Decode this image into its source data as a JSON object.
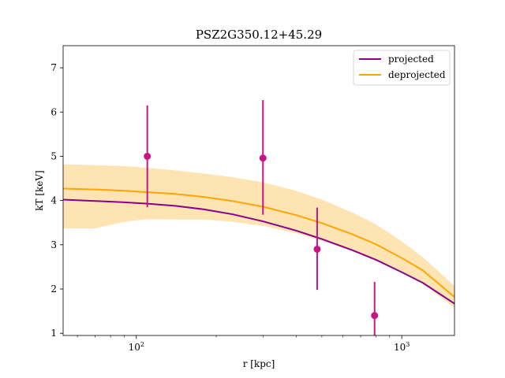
{
  "chart_data": {
    "type": "line",
    "title": "PSZ2G350.12+45.29",
    "xlabel": "r [kpc]",
    "ylabel": "kT [keV]",
    "xscale": "log",
    "xlim": [
      53,
      1580
    ],
    "ylim": [
      0.95,
      7.5
    ],
    "grid": false,
    "legend_position": "top-right",
    "yticks": [
      1,
      2,
      3,
      4,
      5,
      6,
      7
    ],
    "xticks": [
      {
        "value": 100,
        "label": "10^2"
      },
      {
        "value": 1000,
        "label": "10^3"
      }
    ],
    "series": [
      {
        "name": "projected",
        "kind": "line",
        "color": "#8B008B",
        "x": [
          53,
          70,
          90,
          110,
          140,
          180,
          230,
          300,
          400,
          500,
          650,
          800,
          1000,
          1200,
          1580
        ],
        "y": [
          4.02,
          3.99,
          3.96,
          3.93,
          3.88,
          3.8,
          3.69,
          3.53,
          3.32,
          3.13,
          2.88,
          2.66,
          2.38,
          2.14,
          1.67
        ]
      },
      {
        "name": "deprojected",
        "kind": "line",
        "color": "#FFA500",
        "band_color": "#FFDDA0",
        "x": [
          53,
          70,
          90,
          110,
          140,
          180,
          230,
          300,
          400,
          500,
          650,
          800,
          1000,
          1200,
          1580
        ],
        "y": [
          4.27,
          4.25,
          4.22,
          4.19,
          4.15,
          4.08,
          3.99,
          3.86,
          3.67,
          3.49,
          3.24,
          3.01,
          2.7,
          2.42,
          1.82
        ],
        "band_upper": [
          4.82,
          4.8,
          4.78,
          4.74,
          4.68,
          4.61,
          4.53,
          4.41,
          4.22,
          4.02,
          3.73,
          3.46,
          3.08,
          2.72,
          2.07
        ],
        "band_lower": [
          3.37,
          3.37,
          3.52,
          3.58,
          3.57,
          3.57,
          3.52,
          3.43,
          3.26,
          3.09,
          2.86,
          2.66,
          2.39,
          2.13,
          1.57
        ]
      }
    ],
    "points": {
      "color": "#C71585",
      "x": [
        110,
        300,
        480,
        790
      ],
      "y": [
        5.0,
        4.96,
        2.9,
        1.4
      ],
      "y_low": [
        3.85,
        3.68,
        1.98,
        0.95
      ],
      "y_high": [
        6.15,
        6.27,
        3.84,
        2.16
      ]
    }
  }
}
